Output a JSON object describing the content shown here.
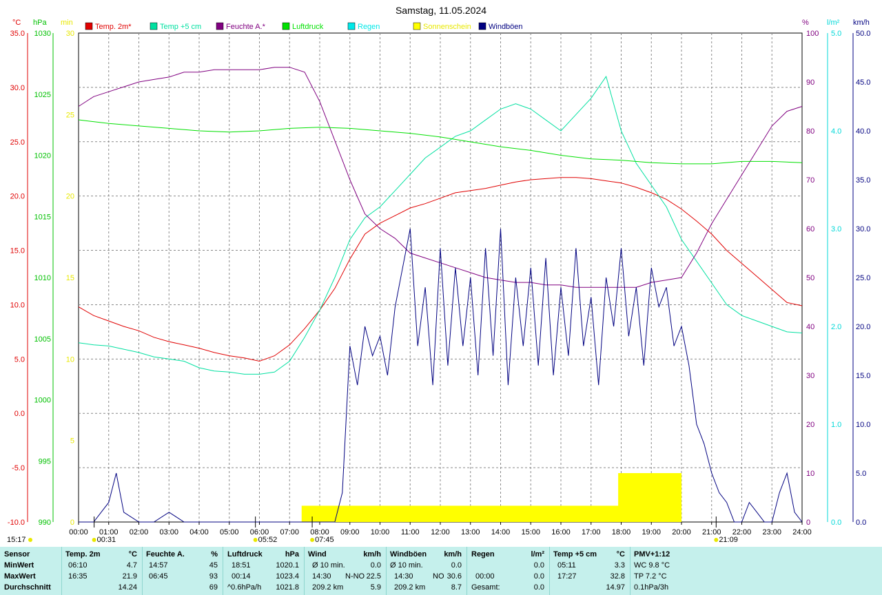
{
  "title": "Samstag, 11.05.2024",
  "legend": [
    {
      "label": "Temp. 2m*",
      "color": "#e00000"
    },
    {
      "label": "Temp +5 cm",
      "color": "#00e0a0"
    },
    {
      "label": "Feuchte A.*",
      "color": "#800080"
    },
    {
      "label": "Luftdruck",
      "color": "#00e000"
    },
    {
      "label": "Regen",
      "color": "#00e8e8"
    },
    {
      "label": "Sonnenschein",
      "color": "#ffff00"
    },
    {
      "label": "Windböen",
      "color": "#000080"
    }
  ],
  "axis_units": {
    "temp": "°C",
    "pressure": "hPa",
    "minutes": "min",
    "humidity": "%",
    "rain": "l/m²",
    "wind": "km/h"
  },
  "axis_colors": {
    "temp": "#e00000",
    "pressure": "#00c000",
    "minutes": "#e8e800",
    "humidity": "#800080",
    "rain": "#00d8d8",
    "wind": "#000080"
  },
  "chart_data": {
    "type": "line",
    "title": "Samstag, 11.05.2024",
    "x_ticks": [
      "00:00",
      "01:00",
      "02:00",
      "03:00",
      "04:00",
      "05:00",
      "06:00",
      "07:00",
      "08:00",
      "09:00",
      "10:00",
      "11:00",
      "12:00",
      "13:00",
      "14:00",
      "15:00",
      "16:00",
      "17:00",
      "18:00",
      "19:00",
      "20:00",
      "21:00",
      "22:00",
      "23:00",
      "24:00"
    ],
    "axes": {
      "temp": {
        "range": [
          -10,
          35
        ],
        "ticks": [
          "35.0",
          "30.0",
          "25.0",
          "20.0",
          "15.0",
          "10.0",
          "5.0",
          "0.0",
          "-5.0",
          "-10.0"
        ]
      },
      "pressure": {
        "range": [
          990,
          1030
        ],
        "ticks": [
          "1030",
          "1025",
          "1020",
          "1015",
          "1010",
          "1005",
          "1000",
          "995",
          "990"
        ]
      },
      "minutes": {
        "range": [
          0,
          30
        ],
        "ticks": [
          "30",
          "25",
          "20",
          "15",
          "10",
          "5",
          "0"
        ]
      },
      "humidity": {
        "range": [
          0,
          100
        ],
        "ticks": [
          "100",
          "90",
          "80",
          "70",
          "60",
          "50",
          "40",
          "30",
          "20",
          "10",
          "0"
        ]
      },
      "rain": {
        "range": [
          0,
          5
        ],
        "ticks": [
          "5.0",
          "4.0",
          "3.0",
          "2.0",
          "1.0",
          "0.0"
        ]
      },
      "wind": {
        "range": [
          0,
          50
        ],
        "ticks": [
          "50.0",
          "45.0",
          "40.0",
          "35.0",
          "30.0",
          "25.0",
          "20.0",
          "15.0",
          "10.0",
          "5.0",
          "0.0"
        ]
      }
    },
    "grid": true,
    "series": [
      {
        "name": "Temp. 2m*",
        "axis": "temp",
        "color": "#e00000",
        "x": [
          0,
          0.5,
          1,
          1.5,
          2,
          2.5,
          3,
          3.5,
          4,
          4.5,
          5,
          5.5,
          6,
          6.5,
          7,
          7.5,
          8,
          8.5,
          9,
          9.5,
          10,
          10.5,
          11,
          11.5,
          12,
          12.5,
          13,
          13.5,
          14,
          14.5,
          15,
          15.5,
          16,
          16.5,
          17,
          17.5,
          18,
          18.5,
          19,
          19.5,
          20,
          20.5,
          21,
          21.5,
          22,
          22.5,
          23,
          23.5,
          24
        ],
        "y": [
          9.8,
          9.0,
          8.5,
          8.0,
          7.6,
          7.0,
          6.6,
          6.3,
          6.0,
          5.6,
          5.3,
          5.1,
          4.8,
          5.3,
          6.3,
          7.8,
          9.5,
          11.5,
          14.2,
          16.5,
          17.5,
          18.2,
          18.9,
          19.3,
          19.8,
          20.3,
          20.5,
          20.7,
          21.0,
          21.3,
          21.5,
          21.6,
          21.7,
          21.7,
          21.6,
          21.4,
          21.2,
          20.8,
          20.3,
          19.7,
          18.8,
          17.7,
          16.5,
          15.0,
          13.8,
          12.6,
          11.4,
          10.2,
          9.9
        ]
      },
      {
        "name": "Temp +5 cm",
        "axis": "temp",
        "color": "#00e0a0",
        "x": [
          0,
          0.5,
          1,
          1.5,
          2,
          2.5,
          3,
          3.5,
          4,
          4.5,
          5,
          5.5,
          6,
          6.5,
          7,
          7.5,
          8,
          8.5,
          9,
          9.5,
          10,
          10.5,
          11,
          11.5,
          12,
          12.5,
          13,
          13.5,
          14,
          14.5,
          15,
          15.5,
          16,
          16.5,
          17,
          17.5,
          18,
          18.5,
          19,
          19.5,
          20,
          20.5,
          21,
          21.5,
          22,
          22.5,
          23,
          23.5,
          24
        ],
        "y": [
          6.5,
          6.3,
          6.2,
          5.9,
          5.6,
          5.2,
          5.0,
          4.8,
          4.2,
          3.9,
          3.8,
          3.6,
          3.6,
          3.8,
          4.8,
          7.0,
          9.5,
          12.5,
          16.0,
          18.0,
          19.0,
          20.5,
          22.0,
          23.5,
          24.5,
          25.5,
          26.0,
          27.0,
          28.0,
          28.5,
          28.0,
          27.0,
          26.0,
          27.5,
          29.0,
          31.0,
          26.0,
          23.0,
          21.0,
          19.0,
          16.0,
          14.0,
          12.0,
          10.0,
          9.0,
          8.5,
          8.0,
          7.5,
          7.4
        ]
      },
      {
        "name": "Feuchte A.*",
        "axis": "humidity",
        "color": "#800080",
        "x": [
          0,
          0.5,
          1,
          1.5,
          2,
          2.5,
          3,
          3.5,
          4,
          4.5,
          5,
          5.5,
          6,
          6.5,
          7,
          7.5,
          8,
          8.5,
          9,
          9.5,
          10,
          10.5,
          11,
          11.5,
          12,
          12.5,
          13,
          13.5,
          14,
          14.5,
          15,
          15.5,
          16,
          16.5,
          17,
          17.5,
          18,
          18.5,
          19,
          19.5,
          20,
          20.5,
          21,
          21.5,
          22,
          22.5,
          23,
          23.5,
          24
        ],
        "y": [
          85,
          87,
          88,
          89,
          90,
          90.5,
          91,
          92,
          92,
          92.5,
          92.5,
          92.5,
          92.5,
          93,
          93,
          92,
          86,
          78,
          70,
          63,
          60,
          58,
          55,
          54,
          53,
          52,
          51,
          50,
          49.5,
          49,
          49,
          48.5,
          48.5,
          48,
          48,
          48,
          48,
          48,
          49,
          49.5,
          50,
          55,
          61,
          66,
          71,
          76,
          81,
          84,
          85
        ]
      },
      {
        "name": "Luftdruck",
        "axis": "pressure",
        "color": "#00e000",
        "x": [
          0,
          1,
          2,
          3,
          4,
          5,
          6,
          7,
          8,
          9,
          10,
          11,
          12,
          13,
          14,
          15,
          16,
          17,
          18,
          19,
          20,
          21,
          22,
          23,
          24
        ],
        "y": [
          1022.9,
          1022.6,
          1022.4,
          1022.2,
          1022.0,
          1021.9,
          1022.0,
          1022.2,
          1022.3,
          1022.2,
          1022.0,
          1021.8,
          1021.5,
          1021.1,
          1020.7,
          1020.4,
          1020.0,
          1019.7,
          1019.6,
          1019.4,
          1019.3,
          1019.3,
          1019.5,
          1019.5,
          1019.4
        ]
      },
      {
        "name": "Windböen",
        "axis": "wind",
        "color": "#000080",
        "x": [
          0,
          0.5,
          1,
          1.25,
          1.5,
          2,
          2.5,
          3,
          3.5,
          4,
          4.5,
          5,
          5.5,
          6,
          6.5,
          7,
          7.5,
          8,
          8.5,
          8.75,
          9,
          9.25,
          9.5,
          9.75,
          10,
          10.25,
          10.5,
          10.75,
          11,
          11.25,
          11.5,
          11.75,
          12,
          12.25,
          12.5,
          12.75,
          13,
          13.25,
          13.5,
          13.75,
          14,
          14.25,
          14.5,
          14.75,
          15,
          15.25,
          15.5,
          15.75,
          16,
          16.25,
          16.5,
          16.75,
          17,
          17.25,
          17.5,
          17.75,
          18,
          18.25,
          18.5,
          18.75,
          19,
          19.25,
          19.5,
          19.75,
          20,
          20.25,
          20.5,
          20.75,
          21,
          21.25,
          21.5,
          21.75,
          22,
          22.25,
          22.5,
          22.75,
          23,
          23.25,
          23.5,
          23.75,
          24
        ],
        "y": [
          0,
          0,
          2,
          5,
          1,
          0,
          0,
          1,
          0,
          0,
          0,
          0,
          0,
          0,
          0,
          0,
          0,
          0,
          0,
          3,
          18,
          14,
          20,
          17,
          19,
          15,
          22,
          26,
          30,
          18,
          24,
          14,
          28,
          16,
          26,
          18,
          25,
          15,
          28,
          17,
          30,
          14,
          25,
          18,
          26,
          16,
          27,
          15,
          24,
          17,
          28,
          18,
          23,
          14,
          25,
          20,
          28,
          19,
          24,
          16,
          26,
          22,
          24,
          18,
          20,
          16,
          10,
          8,
          5,
          3,
          2,
          0,
          0,
          2,
          1,
          0,
          0,
          3,
          5,
          1,
          0
        ]
      }
    ],
    "sunshine_min": {
      "x": [
        0,
        7.4,
        7.4,
        17.9,
        17.9,
        20.0,
        20.0,
        24
      ],
      "y": [
        0,
        0,
        1.0,
        1.0,
        3.0,
        3.0,
        0,
        0
      ]
    },
    "markers": {
      "bottom_left": "15:17",
      "moonset": "00:31",
      "sunrise": "05:52",
      "sun_start": "07:45",
      "sunset": "21:09"
    }
  },
  "stats": {
    "sensor": {
      "header": "Sensor",
      "rows": [
        "MinWert",
        "MaxWert",
        "Durchschnitt"
      ]
    },
    "temp2m": {
      "header": "Temp. 2m",
      "unit": "°C",
      "rows": [
        [
          "06:10",
          "4.7"
        ],
        [
          "16:35",
          "21.9"
        ],
        [
          "",
          "14.24"
        ]
      ]
    },
    "feuchte": {
      "header": "Feuchte A.",
      "unit": "%",
      "rows": [
        [
          "14:57",
          "45"
        ],
        [
          "06:45",
          "93"
        ],
        [
          "",
          "69"
        ]
      ]
    },
    "luftdruck": {
      "header": "Luftdruck",
      "unit": "hPa",
      "rows": [
        [
          "18:51",
          "1020.1"
        ],
        [
          "00:14",
          "1023.4"
        ],
        [
          "^0.6hPa/h",
          "1021.8"
        ]
      ]
    },
    "wind": {
      "header": "Wind",
      "unit": "km/h",
      "rows": [
        [
          "Ø 10 min.",
          "",
          "0.0"
        ],
        [
          "14:30",
          "N-NO",
          "22.5"
        ],
        [
          "209.2 km",
          "",
          "5.9"
        ]
      ]
    },
    "windboeen": {
      "header": "Windböen",
      "unit": "km/h",
      "rows": [
        [
          "Ø 10 min.",
          "",
          "0.0"
        ],
        [
          "14:30",
          "NO",
          "30.6"
        ],
        [
          "209.2 km",
          "",
          "8.7"
        ]
      ]
    },
    "regen": {
      "header": "Regen",
      "unit": "l/m²",
      "rows": [
        [
          "",
          "0.0"
        ],
        [
          "00:00",
          "0.0"
        ],
        [
          "Gesamt:",
          "0.0"
        ]
      ]
    },
    "temp5": {
      "header": "Temp +5 cm",
      "unit": "°C",
      "rows": [
        [
          "05:11",
          "3.3"
        ],
        [
          "17:27",
          "32.8"
        ],
        [
          "",
          "14.97"
        ]
      ]
    },
    "pmv": {
      "header": "PMV+1:12",
      "rows": [
        "WC 9.8 °C",
        "TP 7.2 °C",
        "0.1hPa/3h"
      ]
    }
  }
}
